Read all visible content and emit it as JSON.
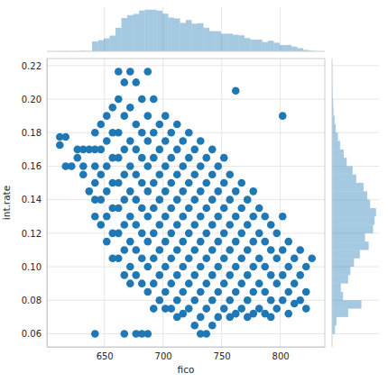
{
  "chart_data": [
    {
      "type": "scatter",
      "xlabel": "fico",
      "ylabel": "int.rate",
      "color": "#1f77b4",
      "grid": true,
      "xlim": [
        601,
        838
      ],
      "ylim": [
        0.0522,
        0.2242
      ],
      "xticks": [
        650,
        700,
        750,
        800
      ],
      "yticks": [
        0.06,
        0.08,
        {
          "value": 0.1,
          "label": "0.10"
        },
        0.12,
        0.14,
        0.16,
        0.18,
        {
          "value": 0.2,
          "label": "0.20"
        },
        0.22
      ],
      "x": [
        612,
        612,
        617,
        617,
        622,
        627,
        627,
        632,
        632,
        632,
        637,
        637,
        642,
        642,
        642,
        642,
        642,
        642,
        642,
        647,
        647,
        647,
        647,
        647,
        652,
        652,
        652,
        652,
        652,
        652,
        657,
        657,
        657,
        657,
        657,
        657,
        657,
        662,
        662,
        662,
        662,
        662,
        662,
        662,
        662,
        667,
        667,
        667,
        667,
        667,
        667,
        667,
        667,
        667,
        672,
        672,
        672,
        672,
        672,
        672,
        672,
        672,
        672,
        677,
        677,
        677,
        677,
        677,
        677,
        677,
        677,
        677,
        682,
        682,
        682,
        682,
        682,
        682,
        682,
        682,
        682,
        687,
        687,
        687,
        687,
        687,
        687,
        687,
        687,
        687,
        687,
        692,
        692,
        692,
        692,
        692,
        692,
        692,
        692,
        692,
        697,
        697,
        697,
        697,
        697,
        697,
        697,
        697,
        702,
        702,
        702,
        702,
        702,
        702,
        702,
        702,
        702,
        707,
        707,
        707,
        707,
        707,
        707,
        707,
        707,
        712,
        712,
        712,
        712,
        712,
        712,
        712,
        712,
        712,
        717,
        717,
        717,
        717,
        717,
        717,
        717,
        717,
        722,
        722,
        722,
        722,
        722,
        722,
        722,
        722,
        727,
        727,
        727,
        727,
        727,
        727,
        727,
        727,
        732,
        732,
        732,
        732,
        732,
        732,
        732,
        732,
        732,
        737,
        737,
        737,
        737,
        737,
        737,
        737,
        737,
        742,
        742,
        742,
        742,
        742,
        742,
        742,
        742,
        747,
        747,
        747,
        747,
        747,
        747,
        747,
        752,
        752,
        752,
        752,
        752,
        752,
        752,
        757,
        757,
        757,
        757,
        757,
        757,
        757,
        762,
        762,
        762,
        762,
        762,
        762,
        762,
        767,
        767,
        767,
        767,
        767,
        767,
        772,
        772,
        772,
        772,
        772,
        772,
        777,
        777,
        777,
        777,
        777,
        777,
        782,
        782,
        782,
        782,
        782,
        787,
        787,
        787,
        787,
        787,
        792,
        792,
        792,
        792,
        792,
        797,
        797,
        797,
        797,
        802,
        802,
        802,
        802,
        802,
        807,
        807,
        807,
        807,
        812,
        812,
        812,
        817,
        817,
        817,
        822,
        822,
        822,
        827
      ],
      "values": [
        0.1774,
        0.1726,
        0.1774,
        0.16,
        0.16,
        0.17,
        0.165,
        0.16,
        0.155,
        0.17,
        0.17,
        0.145,
        0.18,
        0.17,
        0.16,
        0.15,
        0.14,
        0.13,
        0.06,
        0.185,
        0.17,
        0.155,
        0.14,
        0.125,
        0.19,
        0.175,
        0.16,
        0.145,
        0.13,
        0.115,
        0.195,
        0.18,
        0.165,
        0.15,
        0.135,
        0.12,
        0.105,
        0.2164,
        0.2,
        0.18,
        0.165,
        0.15,
        0.135,
        0.12,
        0.105,
        0.21,
        0.19,
        0.17,
        0.155,
        0.14,
        0.125,
        0.11,
        0.095,
        0.06,
        0.2164,
        0.195,
        0.175,
        0.16,
        0.145,
        0.13,
        0.115,
        0.1,
        0.09,
        0.21,
        0.185,
        0.17,
        0.155,
        0.14,
        0.125,
        0.11,
        0.095,
        0.06,
        0.2,
        0.18,
        0.165,
        0.15,
        0.135,
        0.12,
        0.105,
        0.09,
        0.06,
        0.2164,
        0.19,
        0.175,
        0.16,
        0.145,
        0.13,
        0.115,
        0.1,
        0.085,
        0.06,
        0.2,
        0.18,
        0.165,
        0.15,
        0.135,
        0.12,
        0.105,
        0.09,
        0.075,
        0.185,
        0.17,
        0.155,
        0.14,
        0.125,
        0.11,
        0.095,
        0.08,
        0.19,
        0.175,
        0.16,
        0.145,
        0.13,
        0.115,
        0.1,
        0.085,
        0.075,
        0.18,
        0.165,
        0.15,
        0.135,
        0.12,
        0.105,
        0.09,
        0.075,
        0.185,
        0.17,
        0.155,
        0.14,
        0.125,
        0.11,
        0.095,
        0.08,
        0.07,
        0.175,
        0.16,
        0.145,
        0.13,
        0.115,
        0.1,
        0.085,
        0.072,
        0.18,
        0.165,
        0.15,
        0.135,
        0.12,
        0.105,
        0.09,
        0.075,
        0.17,
        0.155,
        0.14,
        0.125,
        0.11,
        0.095,
        0.08,
        0.065,
        0.175,
        0.16,
        0.145,
        0.13,
        0.115,
        0.1,
        0.085,
        0.07,
        0.06,
        0.165,
        0.15,
        0.135,
        0.12,
        0.105,
        0.09,
        0.075,
        0.06,
        0.17,
        0.155,
        0.14,
        0.125,
        0.11,
        0.095,
        0.08,
        0.065,
        0.16,
        0.145,
        0.13,
        0.115,
        0.1,
        0.085,
        0.07,
        0.165,
        0.15,
        0.135,
        0.12,
        0.105,
        0.09,
        0.075,
        0.155,
        0.14,
        0.125,
        0.11,
        0.095,
        0.08,
        0.07,
        0.205,
        0.145,
        0.13,
        0.115,
        0.1,
        0.085,
        0.072,
        0.15,
        0.135,
        0.12,
        0.105,
        0.09,
        0.075,
        0.14,
        0.125,
        0.11,
        0.095,
        0.08,
        0.07,
        0.145,
        0.13,
        0.115,
        0.1,
        0.085,
        0.072,
        0.135,
        0.12,
        0.105,
        0.09,
        0.075,
        0.13,
        0.115,
        0.1,
        0.085,
        0.072,
        0.125,
        0.11,
        0.095,
        0.08,
        0.07,
        0.12,
        0.105,
        0.09,
        0.075,
        0.19,
        0.13,
        0.11,
        0.095,
        0.08,
        0.115,
        0.1,
        0.085,
        0.072,
        0.105,
        0.09,
        0.078,
        0.11,
        0.095,
        0.08,
        0.1,
        0.085,
        0.075,
        0.105
      ]
    },
    {
      "type": "histogram",
      "color": "#1f77b4",
      "grid": true,
      "tick_labels": false,
      "ylim": [
        0,
        580
      ],
      "bins": [
        609.5,
        614.5,
        619.5,
        624.5,
        629.5,
        634.5,
        639.5,
        644.5,
        649.5,
        654.5,
        659.5,
        664.5,
        669.5,
        674.5,
        679.5,
        684.5,
        689.5,
        694.5,
        699.5,
        704.5,
        709.5,
        714.5,
        719.5,
        724.5,
        729.5,
        734.5,
        739.5,
        744.5,
        749.5,
        754.5,
        759.5,
        764.5,
        769.5,
        774.5,
        779.5,
        784.5,
        789.5,
        794.5,
        799.5,
        804.5,
        809.5,
        814.5,
        819.5,
        824.5,
        829.5
      ],
      "values": [
        2,
        3,
        1,
        2,
        6,
        2,
        129,
        147,
        170,
        207,
        310,
        438,
        476,
        492,
        536,
        548,
        547,
        535,
        495,
        444,
        433,
        374,
        412,
        364,
        370,
        310,
        266,
        265,
        232,
        233,
        219,
        210,
        175,
        155,
        154,
        122,
        140,
        114,
        83,
        85,
        63,
        42,
        19,
        6
      ]
    },
    {
      "type": "histogram",
      "orientation": "horizontal",
      "color": "#1f77b4",
      "grid": true,
      "tick_labels": false,
      "xlim": [
        0,
        640
      ],
      "bins": [
        0.06,
        0.065,
        0.07,
        0.075,
        0.08,
        0.085,
        0.09,
        0.095,
        0.1,
        0.105,
        0.11,
        0.115,
        0.12,
        0.125,
        0.13,
        0.135,
        0.14,
        0.145,
        0.15,
        0.155,
        0.16,
        0.165,
        0.17,
        0.175,
        0.18,
        0.185,
        0.19,
        0.195,
        0.2,
        0.205,
        0.21,
        0.215,
        0.22
      ],
      "values": [
        40,
        60,
        220,
        400,
        150,
        120,
        220,
        250,
        300,
        380,
        500,
        450,
        560,
        580,
        600,
        520,
        480,
        430,
        330,
        280,
        200,
        160,
        110,
        80,
        50,
        35,
        20,
        15,
        8,
        5,
        3,
        3
      ]
    }
  ]
}
